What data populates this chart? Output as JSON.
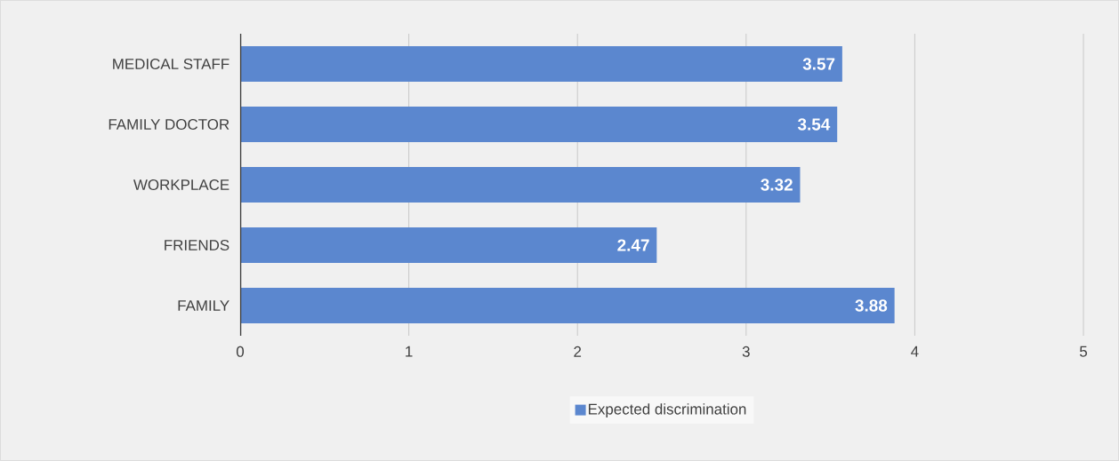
{
  "chart_data": {
    "type": "bar",
    "orientation": "horizontal",
    "categories": [
      "MEDICAL STAFF",
      "FAMILY DOCTOR",
      "WORKPLACE",
      "FRIENDS",
      "FAMILY"
    ],
    "series": [
      {
        "name": "Expected discrimination",
        "color": "#5b87cf",
        "values": [
          3.57,
          3.54,
          3.32,
          2.47,
          3.88
        ]
      }
    ],
    "xlim": [
      0,
      5
    ],
    "xticks": [
      0,
      1,
      2,
      3,
      4,
      5
    ],
    "grid": "x",
    "legend": "bottom",
    "data_labels": true
  }
}
